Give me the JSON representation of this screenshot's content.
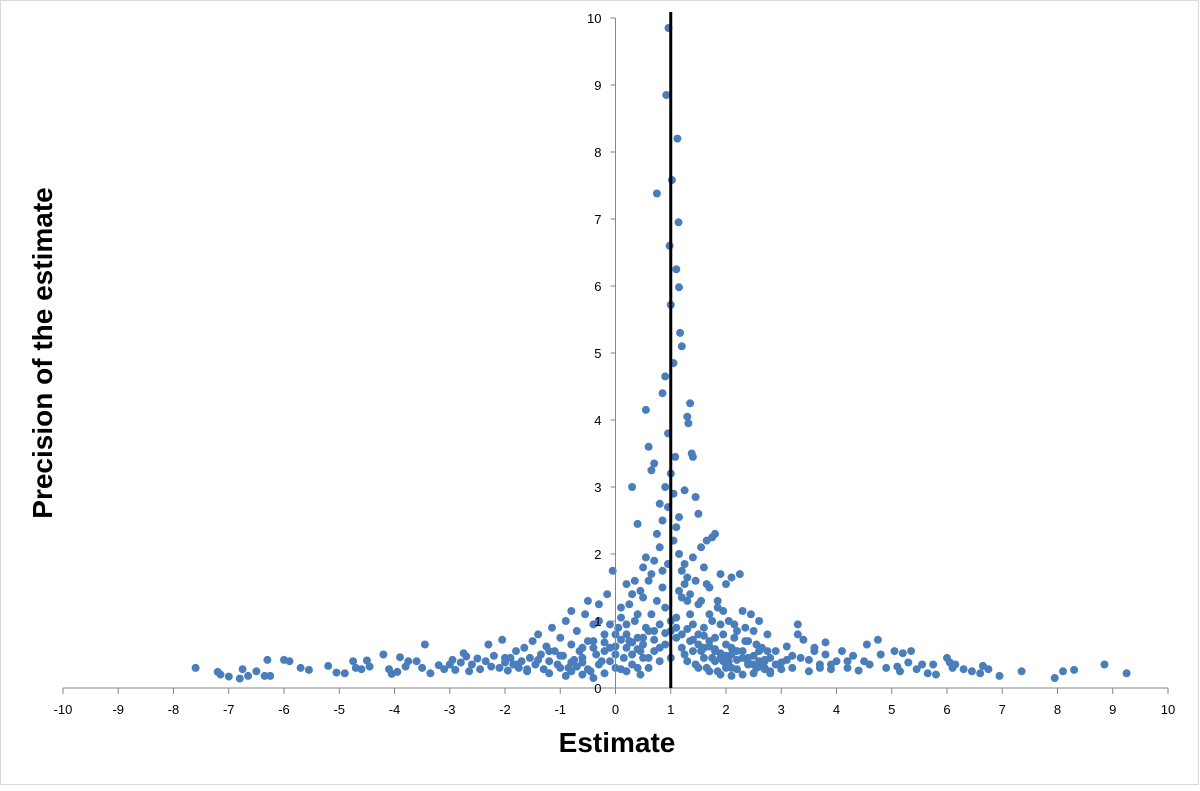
{
  "chart_data": {
    "type": "scatter",
    "title": "",
    "xlabel": "Estimate",
    "ylabel": "Precision of the estimate",
    "xlim": [
      -10,
      10
    ],
    "ylim": [
      0,
      10
    ],
    "x_ticks": [
      "-10",
      "-9",
      "-8",
      "-7",
      "-6",
      "-5",
      "-4",
      "-3",
      "-2",
      "-1",
      "0",
      "1",
      "2",
      "3",
      "4",
      "5",
      "6",
      "7",
      "8",
      "9",
      "10"
    ],
    "y_ticks": [
      "0",
      "1",
      "2",
      "3",
      "4",
      "5",
      "6",
      "7",
      "8",
      "9",
      "10"
    ],
    "grid": false,
    "legend": "none",
    "reference_line_x": 1,
    "colors": {
      "points": "#4a7ebb",
      "reference_line": "#000000",
      "axes": "#868686"
    },
    "points": [
      [
        -7.6,
        0.3
      ],
      [
        -7.2,
        0.24
      ],
      [
        -7.15,
        0.2
      ],
      [
        -7.0,
        0.17
      ],
      [
        -6.8,
        0.14
      ],
      [
        -6.75,
        0.28
      ],
      [
        -6.65,
        0.18
      ],
      [
        -6.5,
        0.25
      ],
      [
        -6.35,
        0.18
      ],
      [
        -6.3,
        0.42
      ],
      [
        -6.25,
        0.18
      ],
      [
        -6.0,
        0.42
      ],
      [
        -5.9,
        0.4
      ],
      [
        -5.7,
        0.3
      ],
      [
        -5.55,
        0.27
      ],
      [
        -5.2,
        0.33
      ],
      [
        -5.05,
        0.23
      ],
      [
        -4.9,
        0.22
      ],
      [
        -4.75,
        0.4
      ],
      [
        -4.7,
        0.3
      ],
      [
        -4.6,
        0.28
      ],
      [
        -4.5,
        0.41
      ],
      [
        -4.45,
        0.32
      ],
      [
        -4.2,
        0.5
      ],
      [
        -4.1,
        0.28
      ],
      [
        -4.05,
        0.21
      ],
      [
        -3.95,
        0.24
      ],
      [
        -3.9,
        0.46
      ],
      [
        -3.8,
        0.32
      ],
      [
        -3.75,
        0.4
      ],
      [
        -3.6,
        0.4
      ],
      [
        -3.5,
        0.3
      ],
      [
        -3.45,
        0.65
      ],
      [
        -3.35,
        0.22
      ],
      [
        -3.2,
        0.34
      ],
      [
        -3.1,
        0.28
      ],
      [
        -3.0,
        0.35
      ],
      [
        -2.95,
        0.42
      ],
      [
        -2.9,
        0.27
      ],
      [
        -2.8,
        0.38
      ],
      [
        -2.75,
        0.52
      ],
      [
        -2.7,
        0.47
      ],
      [
        -2.65,
        0.25
      ],
      [
        -2.6,
        0.35
      ],
      [
        -2.5,
        0.44
      ],
      [
        -2.45,
        0.28
      ],
      [
        -2.35,
        0.4
      ],
      [
        -2.3,
        0.65
      ],
      [
        -2.25,
        0.32
      ],
      [
        -2.2,
        0.48
      ],
      [
        -2.1,
        0.3
      ],
      [
        -2.05,
        0.72
      ],
      [
        -2.0,
        0.38
      ],
      [
        -1.95,
        0.26
      ],
      [
        -1.9,
        0.45
      ],
      [
        -1.85,
        0.35
      ],
      [
        -1.8,
        0.55
      ],
      [
        -1.75,
        0.3
      ],
      [
        -1.7,
        0.4
      ],
      [
        -1.65,
        0.6
      ],
      [
        -1.6,
        0.25
      ],
      [
        -1.55,
        0.45
      ],
      [
        -1.5,
        0.7
      ],
      [
        -1.45,
        0.35
      ],
      [
        -1.4,
        0.8
      ],
      [
        -1.35,
        0.5
      ],
      [
        -1.3,
        0.28
      ],
      [
        -1.25,
        0.62
      ],
      [
        -1.2,
        0.4
      ],
      [
        -1.15,
        0.9
      ],
      [
        -1.1,
        0.55
      ],
      [
        -1.05,
        0.35
      ],
      [
        -1.0,
        0.75
      ],
      [
        -0.95,
        0.48
      ],
      [
        -0.9,
        1.0
      ],
      [
        -0.85,
        0.3
      ],
      [
        -0.8,
        0.65
      ],
      [
        -0.75,
        0.42
      ],
      [
        -0.7,
        0.85
      ],
      [
        -0.65,
        0.55
      ],
      [
        -0.6,
        0.38
      ],
      [
        -0.55,
        1.1
      ],
      [
        -0.5,
        0.7
      ],
      [
        -0.45,
        0.25
      ],
      [
        -0.4,
        0.95
      ],
      [
        -0.35,
        0.5
      ],
      [
        -0.3,
        1.25
      ],
      [
        -0.25,
        0.4
      ],
      [
        -0.2,
        0.8
      ],
      [
        -0.15,
        1.4
      ],
      [
        -0.1,
        0.6
      ],
      [
        -0.05,
        1.75
      ],
      [
        0.0,
        0.3
      ],
      [
        0.05,
        0.9
      ],
      [
        0.1,
        1.2
      ],
      [
        0.15,
        0.45
      ],
      [
        0.2,
        1.55
      ],
      [
        0.25,
        0.7
      ],
      [
        0.3,
        3.0
      ],
      [
        0.35,
        1.0
      ],
      [
        0.4,
        2.45
      ],
      [
        0.45,
        0.55
      ],
      [
        0.5,
        1.8
      ],
      [
        0.55,
        4.15
      ],
      [
        0.6,
        3.6
      ],
      [
        0.65,
        3.25
      ],
      [
        0.7,
        3.35
      ],
      [
        0.75,
        7.38
      ],
      [
        0.8,
        2.75
      ],
      [
        0.85,
        4.4
      ],
      [
        0.9,
        4.65
      ],
      [
        0.92,
        8.85
      ],
      [
        0.95,
        3.8
      ],
      [
        0.96,
        9.85
      ],
      [
        0.98,
        6.6
      ],
      [
        1.0,
        5.72
      ],
      [
        1.02,
        7.58
      ],
      [
        1.05,
        4.85
      ],
      [
        1.08,
        3.45
      ],
      [
        1.1,
        6.25
      ],
      [
        1.12,
        8.2
      ],
      [
        1.14,
        6.95
      ],
      [
        1.15,
        5.98
      ],
      [
        1.17,
        5.3
      ],
      [
        1.2,
        5.1
      ],
      [
        1.25,
        2.95
      ],
      [
        1.3,
        4.05
      ],
      [
        1.32,
        3.95
      ],
      [
        1.35,
        4.25
      ],
      [
        1.38,
        3.5
      ],
      [
        1.4,
        3.45
      ],
      [
        1.45,
        2.85
      ],
      [
        1.5,
        2.6
      ],
      [
        1.55,
        2.1
      ],
      [
        1.6,
        1.8
      ],
      [
        1.65,
        2.2
      ],
      [
        1.7,
        1.5
      ],
      [
        1.75,
        2.25
      ],
      [
        1.8,
        2.3
      ],
      [
        1.85,
        1.2
      ],
      [
        1.9,
        1.7
      ],
      [
        1.95,
        0.8
      ],
      [
        2.0,
        1.55
      ],
      [
        2.05,
        0.4
      ],
      [
        2.1,
        1.65
      ],
      [
        2.15,
        0.95
      ],
      [
        2.2,
        0.55
      ],
      [
        2.25,
        1.7
      ],
      [
        2.3,
        1.15
      ],
      [
        2.35,
        0.7
      ],
      [
        2.4,
        0.45
      ],
      [
        2.45,
        1.1
      ],
      [
        2.5,
        0.85
      ],
      [
        2.55,
        0.3
      ],
      [
        2.6,
        1.0
      ],
      [
        2.65,
        0.6
      ],
      [
        2.7,
        0.4
      ],
      [
        2.75,
        0.8
      ],
      [
        2.8,
        0.25
      ],
      [
        2.9,
        0.55
      ],
      [
        3.0,
        0.38
      ],
      [
        3.1,
        0.62
      ],
      [
        3.2,
        0.3
      ],
      [
        3.3,
        0.95
      ],
      [
        3.35,
        0.45
      ],
      [
        3.4,
        0.72
      ],
      [
        3.5,
        0.25
      ],
      [
        3.6,
        0.55
      ],
      [
        3.7,
        0.35
      ],
      [
        3.8,
        0.68
      ],
      [
        3.9,
        0.28
      ],
      [
        4.0,
        0.4
      ],
      [
        4.1,
        0.55
      ],
      [
        4.2,
        0.3
      ],
      [
        4.3,
        0.48
      ],
      [
        4.4,
        0.26
      ],
      [
        4.5,
        0.4
      ],
      [
        4.55,
        0.65
      ],
      [
        4.6,
        0.35
      ],
      [
        4.75,
        0.72
      ],
      [
        4.8,
        0.5
      ],
      [
        4.9,
        0.3
      ],
      [
        5.05,
        0.55
      ],
      [
        5.1,
        0.32
      ],
      [
        5.15,
        0.25
      ],
      [
        5.2,
        0.52
      ],
      [
        5.3,
        0.38
      ],
      [
        5.35,
        0.55
      ],
      [
        5.45,
        0.28
      ],
      [
        5.55,
        0.35
      ],
      [
        5.65,
        0.22
      ],
      [
        5.75,
        0.35
      ],
      [
        5.8,
        0.2
      ],
      [
        6.0,
        0.45
      ],
      [
        6.05,
        0.38
      ],
      [
        6.1,
        0.3
      ],
      [
        6.15,
        0.35
      ],
      [
        6.3,
        0.28
      ],
      [
        6.45,
        0.25
      ],
      [
        6.6,
        0.22
      ],
      [
        6.65,
        0.33
      ],
      [
        6.75,
        0.28
      ],
      [
        6.95,
        0.18
      ],
      [
        7.35,
        0.25
      ],
      [
        7.95,
        0.15
      ],
      [
        8.1,
        0.25
      ],
      [
        8.3,
        0.27
      ],
      [
        8.85,
        0.35
      ],
      [
        9.25,
        0.22
      ],
      [
        -1.2,
        0.22
      ],
      [
        -1.0,
        0.3
      ],
      [
        -0.9,
        0.18
      ],
      [
        -0.8,
        0.25
      ],
      [
        -0.7,
        0.32
      ],
      [
        -0.6,
        0.2
      ],
      [
        -0.5,
        0.28
      ],
      [
        -0.4,
        0.15
      ],
      [
        -0.3,
        0.35
      ],
      [
        -0.2,
        0.22
      ],
      [
        -0.1,
        0.4
      ],
      [
        0.0,
        0.5
      ],
      [
        0.1,
        0.28
      ],
      [
        0.2,
        0.6
      ],
      [
        0.3,
        0.35
      ],
      [
        0.4,
        0.75
      ],
      [
        0.45,
        0.2
      ],
      [
        0.5,
        0.45
      ],
      [
        0.55,
        0.9
      ],
      [
        0.6,
        0.3
      ],
      [
        0.65,
        1.1
      ],
      [
        0.7,
        0.55
      ],
      [
        0.75,
        1.3
      ],
      [
        0.8,
        0.4
      ],
      [
        0.85,
        1.5
      ],
      [
        0.9,
        0.65
      ],
      [
        0.95,
        1.85
      ],
      [
        1.0,
        0.85
      ],
      [
        1.05,
        2.2
      ],
      [
        1.1,
        1.05
      ],
      [
        1.15,
        2.55
      ],
      [
        1.2,
        1.35
      ],
      [
        1.25,
        0.5
      ],
      [
        1.3,
        1.65
      ],
      [
        1.35,
        0.7
      ],
      [
        1.4,
        1.95
      ],
      [
        1.45,
        0.35
      ],
      [
        1.5,
        1.25
      ],
      [
        1.55,
        0.55
      ],
      [
        1.6,
        0.9
      ],
      [
        1.65,
        0.3
      ],
      [
        1.7,
        1.1
      ],
      [
        1.75,
        0.45
      ],
      [
        1.8,
        0.75
      ],
      [
        1.85,
        0.25
      ],
      [
        1.9,
        0.95
      ],
      [
        1.95,
        0.4
      ],
      [
        2.0,
        0.65
      ],
      [
        2.1,
        0.3
      ],
      [
        2.2,
        0.85
      ],
      [
        2.3,
        0.45
      ],
      [
        2.4,
        0.7
      ],
      [
        2.5,
        0.35
      ],
      [
        2.6,
        0.55
      ],
      [
        2.7,
        0.28
      ],
      [
        2.8,
        0.45
      ],
      [
        -0.6,
        0.6
      ],
      [
        -0.4,
        0.7
      ],
      [
        -0.2,
        0.55
      ],
      [
        0.0,
        0.8
      ],
      [
        0.2,
        0.95
      ],
      [
        0.3,
        1.4
      ],
      [
        0.4,
        1.1
      ],
      [
        0.5,
        1.35
      ],
      [
        0.6,
        1.6
      ],
      [
        0.7,
        1.9
      ],
      [
        0.8,
        2.1
      ],
      [
        0.85,
        2.5
      ],
      [
        0.9,
        3.0
      ],
      [
        0.95,
        2.7
      ],
      [
        1.0,
        3.2
      ],
      [
        1.05,
        2.9
      ],
      [
        1.1,
        2.4
      ],
      [
        1.15,
        2.0
      ],
      [
        1.2,
        1.75
      ],
      [
        1.25,
        1.55
      ],
      [
        1.3,
        1.3
      ],
      [
        1.35,
        1.1
      ],
      [
        1.4,
        0.95
      ],
      [
        1.5,
        0.8
      ],
      [
        1.6,
        0.6
      ],
      [
        1.7,
        0.7
      ],
      [
        1.8,
        0.55
      ],
      [
        1.9,
        0.45
      ],
      [
        2.0,
        0.35
      ],
      [
        2.1,
        0.5
      ],
      [
        0.2,
        0.25
      ],
      [
        0.3,
        0.5
      ],
      [
        0.4,
        0.3
      ],
      [
        0.5,
        0.65
      ],
      [
        0.6,
        0.45
      ],
      [
        0.7,
        0.85
      ],
      [
        0.8,
        0.6
      ],
      [
        0.9,
        1.2
      ],
      [
        1.0,
        0.45
      ],
      [
        1.1,
        0.75
      ],
      [
        1.2,
        0.6
      ],
      [
        1.3,
        0.4
      ],
      [
        1.4,
        0.55
      ],
      [
        1.5,
        0.3
      ],
      [
        1.6,
        0.45
      ],
      [
        1.7,
        0.25
      ],
      [
        1.8,
        0.4
      ],
      [
        1.9,
        0.2
      ],
      [
        2.0,
        0.3
      ],
      [
        2.1,
        0.18
      ],
      [
        2.2,
        0.28
      ],
      [
        2.3,
        0.2
      ],
      [
        2.4,
        0.35
      ],
      [
        2.5,
        0.22
      ],
      [
        2.6,
        0.4
      ],
      [
        2.7,
        0.3
      ],
      [
        2.8,
        0.22
      ],
      [
        2.9,
        0.35
      ],
      [
        3.0,
        0.28
      ],
      [
        3.1,
        0.42
      ],
      [
        -2.0,
        0.45
      ],
      [
        -1.8,
        0.35
      ],
      [
        -1.6,
        0.28
      ],
      [
        -1.4,
        0.42
      ],
      [
        -1.2,
        0.55
      ],
      [
        -1.0,
        0.48
      ],
      [
        -0.8,
        0.38
      ],
      [
        -0.6,
        0.45
      ],
      [
        -0.4,
        0.6
      ],
      [
        -0.2,
        0.68
      ],
      [
        0.0,
        0.62
      ],
      [
        0.1,
        0.72
      ],
      [
        0.2,
        0.8
      ],
      [
        0.3,
        0.68
      ],
      [
        0.4,
        0.58
      ],
      [
        0.5,
        0.75
      ],
      [
        0.6,
        0.85
      ],
      [
        0.7,
        0.72
      ],
      [
        0.8,
        0.95
      ],
      [
        0.9,
        0.82
      ],
      [
        1.0,
        1.0
      ],
      [
        1.1,
        0.9
      ],
      [
        1.2,
        0.8
      ],
      [
        1.3,
        0.88
      ],
      [
        1.4,
        0.72
      ],
      [
        1.5,
        0.65
      ],
      [
        1.6,
        0.78
      ],
      [
        1.7,
        0.62
      ],
      [
        1.8,
        0.58
      ],
      [
        1.9,
        0.52
      ],
      [
        2.0,
        0.48
      ],
      [
        2.1,
        0.6
      ],
      [
        2.2,
        0.42
      ],
      [
        2.3,
        0.55
      ],
      [
        2.4,
        0.38
      ],
      [
        2.5,
        0.48
      ],
      [
        2.6,
        0.32
      ],
      [
        2.7,
        0.42
      ],
      [
        3.2,
        0.48
      ],
      [
        3.5,
        0.42
      ],
      [
        3.7,
        0.3
      ],
      [
        3.9,
        0.35
      ],
      [
        -0.8,
        1.15
      ],
      [
        -0.5,
        1.3
      ],
      [
        -0.3,
        1.0
      ],
      [
        -0.1,
        0.95
      ],
      [
        0.1,
        1.05
      ],
      [
        0.25,
        1.25
      ],
      [
        0.35,
        1.6
      ],
      [
        0.45,
        1.45
      ],
      [
        0.55,
        1.95
      ],
      [
        0.65,
        1.7
      ],
      [
        0.75,
        2.3
      ],
      [
        0.85,
        1.75
      ],
      [
        1.15,
        1.45
      ],
      [
        1.25,
        1.85
      ],
      [
        1.35,
        1.4
      ],
      [
        1.45,
        1.6
      ],
      [
        1.55,
        1.3
      ],
      [
        1.65,
        1.55
      ],
      [
        1.75,
        1.0
      ],
      [
        1.85,
        1.3
      ],
      [
        1.95,
        1.15
      ],
      [
        2.05,
        1.0
      ],
      [
        2.15,
        0.75
      ],
      [
        2.35,
        0.9
      ],
      [
        2.55,
        0.65
      ],
      [
        2.75,
        0.55
      ],
      [
        3.3,
        0.8
      ],
      [
        3.6,
        0.6
      ],
      [
        3.8,
        0.5
      ],
      [
        4.2,
        0.4
      ]
    ]
  }
}
